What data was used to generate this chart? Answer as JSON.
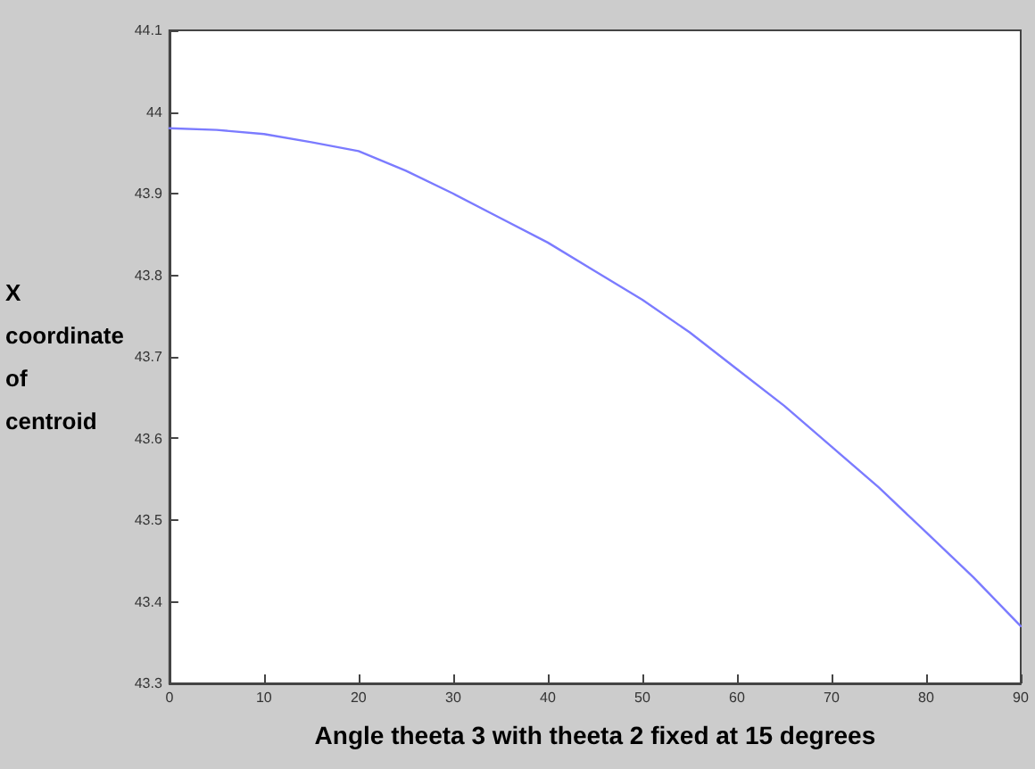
{
  "chart_data": {
    "type": "line",
    "xlabel": "Angle theeta 3 with theeta 2 fixed at 15 degrees",
    "ylabel": "X coordinate of centroid",
    "x": [
      0,
      5,
      10,
      15,
      20,
      25,
      30,
      35,
      40,
      45,
      50,
      55,
      60,
      65,
      70,
      75,
      80,
      85,
      90
    ],
    "series": [
      {
        "color": "#7b7bff",
        "values": [
          43.98,
          43.978,
          43.973,
          43.963,
          43.952,
          43.928,
          43.9,
          43.87,
          43.84,
          43.805,
          43.77,
          43.73,
          43.685,
          43.64,
          43.59,
          43.54,
          43.485,
          43.43,
          43.37
        ]
      }
    ],
    "xlim": [
      0,
      90
    ],
    "xticks": [
      0,
      10,
      20,
      30,
      40,
      50,
      60,
      70,
      80,
      90
    ],
    "ylim": [
      43.3,
      44.1
    ],
    "yticks": [
      43.3,
      43.4,
      43.5,
      43.6,
      43.7,
      43.8,
      43.9,
      44,
      44.1
    ],
    "grid": false,
    "marker": "none",
    "line_style": "solid"
  }
}
